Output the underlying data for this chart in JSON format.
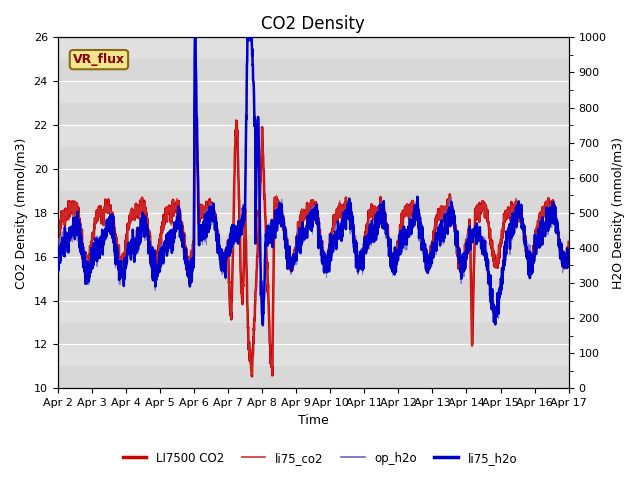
{
  "title": "CO2 Density",
  "xlabel": "Time",
  "ylabel_left": "CO2 Density (mmol/m3)",
  "ylabel_right": "H2O Density (mmol/m3)",
  "ylim_left": [
    10,
    26
  ],
  "ylim_right": [
    0,
    1000
  ],
  "xtick_labels": [
    "Apr 2",
    "Apr 3",
    "Apr 4",
    "Apr 5",
    "Apr 6",
    "Apr 7",
    "Apr 8",
    "Apr 9",
    "Apr 10",
    "Apr 11",
    "Apr 12",
    "Apr 13",
    "Apr 14",
    "Apr 15",
    "Apr 16",
    "Apr 17"
  ],
  "vr_flux_label": "VR_flux",
  "legend_labels": [
    "LI7500 CO2",
    "li75_co2",
    "op_h2o",
    "li75_h2o"
  ],
  "color_thick_red": "#CC0000",
  "color_thin_red": "#CC3333",
  "color_thin_blue": "#6666CC",
  "color_thick_blue": "#0000CC",
  "background_color": "#ffffff",
  "plot_bg_color": "#d8d8d8",
  "stripe_color": "#e8e8e8",
  "grid_color": "#ffffff"
}
